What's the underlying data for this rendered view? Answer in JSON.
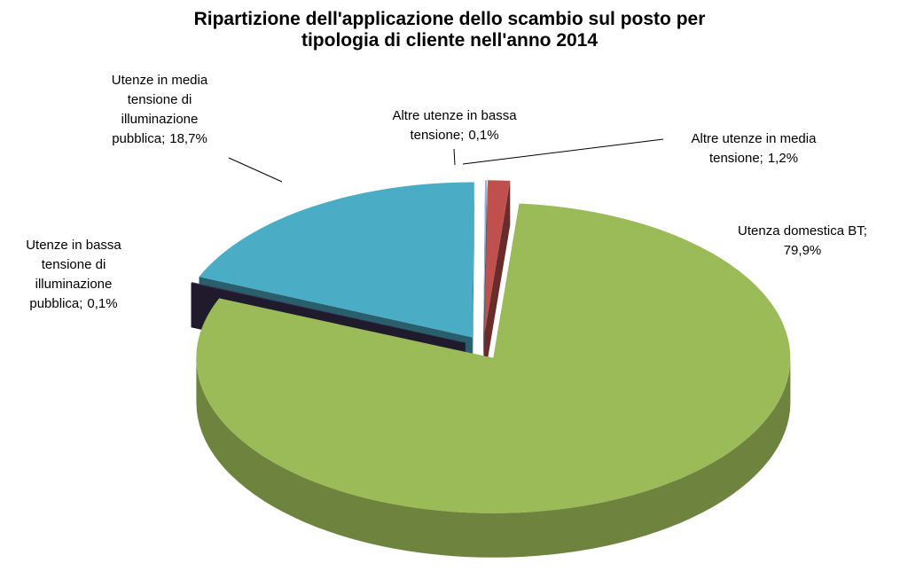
{
  "chart_data": {
    "type": "pie3d",
    "title": "Ripartizione dell'applicazione dello scambio sul posto per tipologia di cliente nell'anno 2014",
    "categories": [
      "Utenza domestica BT;",
      "Utenze in bassa tensione di illuminazione pubblica;",
      "Utenze in media tensione di illuminazione pubblica;",
      "Altre utenze in bassa tensione;",
      "Altre utenze in media tensione;"
    ],
    "values": [
      79.9,
      0.1,
      18.7,
      0.1,
      1.2
    ],
    "value_labels": [
      "79,9%",
      "0,1%",
      "18,7%",
      "0,1%",
      "1,2%"
    ],
    "colors": [
      "#9bbb59",
      "#3b3150",
      "#4bacc6",
      "#95b3d7",
      "#c0504d"
    ]
  }
}
